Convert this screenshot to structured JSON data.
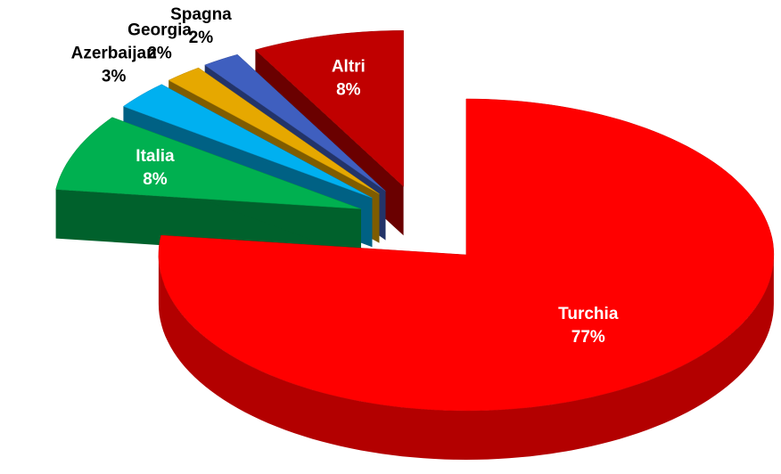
{
  "chart_data": {
    "type": "pie",
    "categories": [
      "Turchia",
      "Italia",
      "Azerbaijan",
      "Georgia",
      "Spagna",
      "Altri"
    ],
    "values": [
      77,
      8,
      3,
      2,
      2,
      8
    ],
    "value_labels": [
      "77%",
      "8%",
      "3%",
      "2%",
      "2%",
      "8%"
    ],
    "colors": [
      "#ff0000",
      "#00b050",
      "#00b0f0",
      "#e6a800",
      "#3f5fbf",
      "#c00000"
    ]
  }
}
